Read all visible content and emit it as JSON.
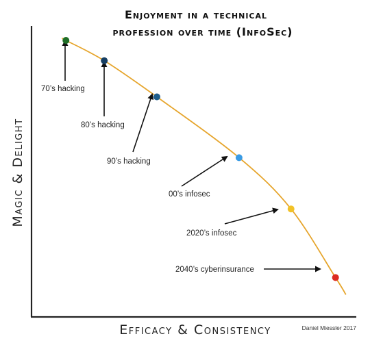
{
  "chart_data": {
    "type": "line",
    "title": [
      "Enjoyment in a technical",
      "profession over time (InfoSec)"
    ],
    "xlabel": "Efficacy & Consistency",
    "ylabel": "Magic & Delight",
    "credit": "Daniel Miessler 2017",
    "xlim": [
      0,
      100
    ],
    "ylim": [
      0,
      100
    ],
    "grid": false,
    "axis_ticks": false,
    "curve_color": "#e6a52c",
    "points": [
      {
        "label": "70’s hacking",
        "x": 10.6,
        "y": 95.5,
        "color": "#1f6e27"
      },
      {
        "label": "80’s hacking",
        "x": 22.4,
        "y": 88.5,
        "color": "#173f63"
      },
      {
        "label": "90’s hacking",
        "x": 38.6,
        "y": 76.0,
        "color": "#1f5d8a"
      },
      {
        "label": "00’s infosec",
        "x": 63.9,
        "y": 55.0,
        "color": "#3a9be4"
      },
      {
        "label": "2020’s infosec",
        "x": 79.9,
        "y": 37.3,
        "color": "#f2c227"
      },
      {
        "label": "2040’s cyberinsurance",
        "x": 93.6,
        "y": 13.6,
        "color": "#dc2a20"
      }
    ]
  }
}
